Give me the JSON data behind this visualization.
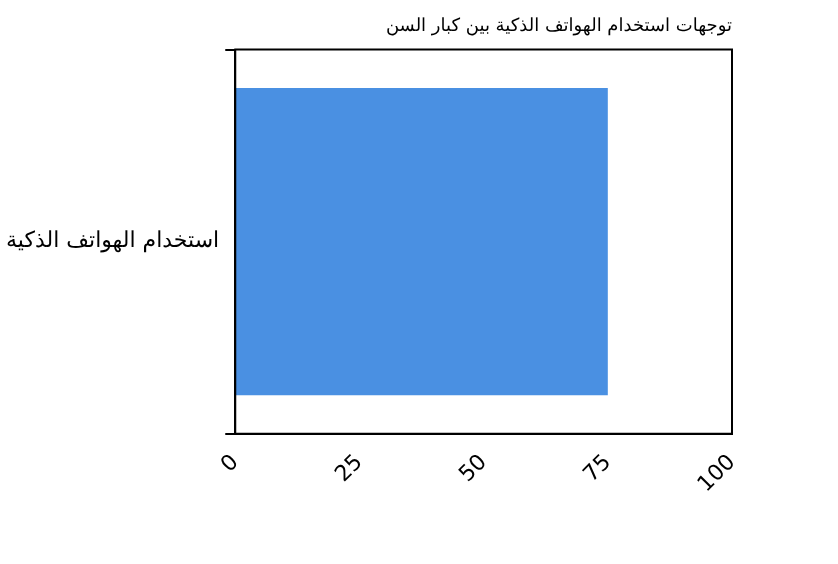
{
  "chart_data": {
    "type": "bar",
    "orientation": "horizontal",
    "title": "توجهات استخدام الهواتف الذكية بين كبار السن",
    "categories": [
      "استخدام الهواتف الذكية"
    ],
    "values": [
      75
    ],
    "color": "#4a90e2",
    "xlim": [
      0,
      100
    ],
    "xticks": [
      0,
      25,
      50,
      75,
      100
    ],
    "grid": false,
    "legend": false
  }
}
